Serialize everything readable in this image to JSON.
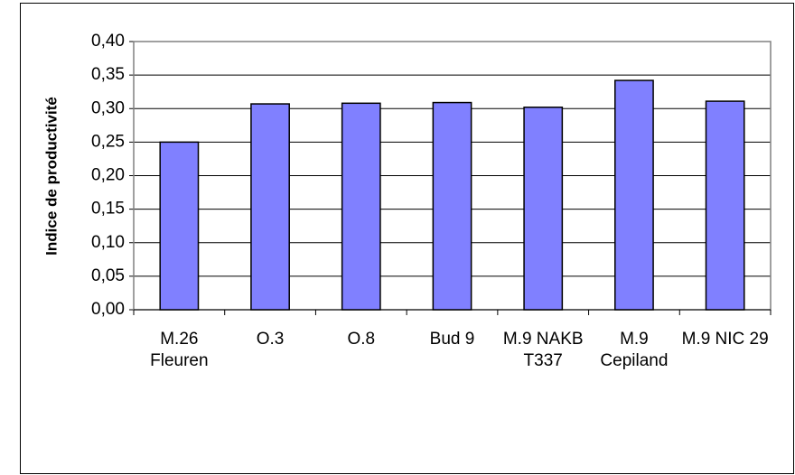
{
  "chart_data": {
    "type": "bar",
    "y_label": "Indice de productivité",
    "categories": [
      "M.26 Fleuren",
      "O.3",
      "O.8",
      "Bud 9",
      "M.9 NAKB T337",
      "M.9 Cepiland",
      "M.9 NIC 29"
    ],
    "values": [
      0.25,
      0.307,
      0.308,
      0.309,
      0.302,
      0.342,
      0.311
    ],
    "color": "#8080ff",
    "ylim": [
      0,
      0.4
    ],
    "yticks": [
      {
        "value": 0,
        "label": "0,00"
      },
      {
        "value": 0.05,
        "label": "0,05"
      },
      {
        "value": 0.1,
        "label": "0,10"
      },
      {
        "value": 0.15,
        "label": "0,15"
      },
      {
        "value": 0.2,
        "label": "0,20"
      },
      {
        "value": 0.25,
        "label": "0,25"
      },
      {
        "value": 0.3,
        "label": "0,30"
      },
      {
        "value": 0.35,
        "label": "0,35"
      },
      {
        "value": 0.4,
        "label": "0,40"
      }
    ],
    "grid": true
  }
}
